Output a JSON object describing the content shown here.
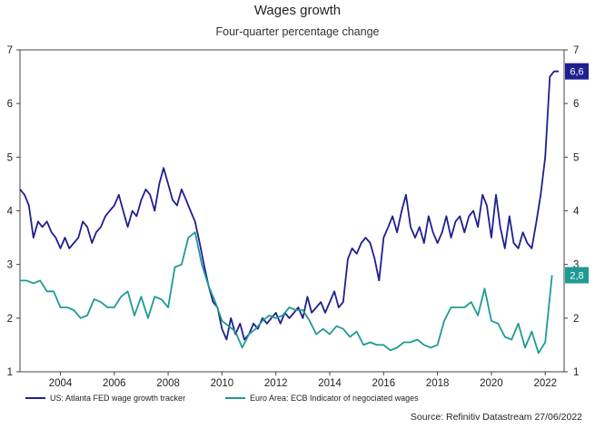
{
  "chart_data": {
    "type": "line",
    "title": "Wages growth",
    "subtitle": "Four-quarter percentage change",
    "source": "Source: Refinitiv Datastream 27/06/2022",
    "xlim": [
      2002.5,
      2022.7
    ],
    "ylim": [
      1,
      7
    ],
    "x_ticks": [
      2004,
      2006,
      2008,
      2010,
      2012,
      2014,
      2016,
      2018,
      2020,
      2022
    ],
    "y_ticks": [
      1,
      2,
      3,
      4,
      5,
      6,
      7
    ],
    "grid": false,
    "legend_position": "bottom",
    "series": [
      {
        "name": "US: Atlanta FED wage growth tracker",
        "color": "#1f1f8f",
        "end_label": "6,6",
        "points": [
          [
            2002.5,
            4.4
          ],
          [
            2002.67,
            4.3
          ],
          [
            2002.83,
            4.1
          ],
          [
            2003.0,
            3.5
          ],
          [
            2003.17,
            3.8
          ],
          [
            2003.33,
            3.7
          ],
          [
            2003.5,
            3.8
          ],
          [
            2003.67,
            3.6
          ],
          [
            2003.83,
            3.5
          ],
          [
            2004.0,
            3.3
          ],
          [
            2004.17,
            3.5
          ],
          [
            2004.33,
            3.3
          ],
          [
            2004.5,
            3.4
          ],
          [
            2004.67,
            3.5
          ],
          [
            2004.83,
            3.8
          ],
          [
            2005.0,
            3.7
          ],
          [
            2005.17,
            3.4
          ],
          [
            2005.33,
            3.6
          ],
          [
            2005.5,
            3.7
          ],
          [
            2005.67,
            3.9
          ],
          [
            2005.83,
            4.0
          ],
          [
            2006.0,
            4.1
          ],
          [
            2006.17,
            4.3
          ],
          [
            2006.33,
            4.0
          ],
          [
            2006.5,
            3.7
          ],
          [
            2006.67,
            4.0
          ],
          [
            2006.83,
            3.9
          ],
          [
            2007.0,
            4.2
          ],
          [
            2007.17,
            4.4
          ],
          [
            2007.33,
            4.3
          ],
          [
            2007.5,
            4.0
          ],
          [
            2007.67,
            4.5
          ],
          [
            2007.83,
            4.8
          ],
          [
            2008.0,
            4.5
          ],
          [
            2008.17,
            4.2
          ],
          [
            2008.33,
            4.1
          ],
          [
            2008.5,
            4.4
          ],
          [
            2008.67,
            4.2
          ],
          [
            2008.83,
            4.0
          ],
          [
            2009.0,
            3.8
          ],
          [
            2009.17,
            3.4
          ],
          [
            2009.33,
            3.0
          ],
          [
            2009.5,
            2.6
          ],
          [
            2009.67,
            2.3
          ],
          [
            2009.83,
            2.2
          ],
          [
            2010.0,
            1.8
          ],
          [
            2010.17,
            1.6
          ],
          [
            2010.33,
            2.0
          ],
          [
            2010.5,
            1.7
          ],
          [
            2010.67,
            1.9
          ],
          [
            2010.83,
            1.6
          ],
          [
            2011.0,
            1.7
          ],
          [
            2011.17,
            1.9
          ],
          [
            2011.33,
            1.8
          ],
          [
            2011.5,
            2.0
          ],
          [
            2011.67,
            1.9
          ],
          [
            2011.83,
            2.0
          ],
          [
            2012.0,
            2.1
          ],
          [
            2012.17,
            1.9
          ],
          [
            2012.33,
            2.1
          ],
          [
            2012.5,
            2.0
          ],
          [
            2012.67,
            2.1
          ],
          [
            2012.83,
            2.2
          ],
          [
            2013.0,
            2.0
          ],
          [
            2013.17,
            2.4
          ],
          [
            2013.33,
            2.1
          ],
          [
            2013.5,
            2.2
          ],
          [
            2013.67,
            2.3
          ],
          [
            2013.83,
            2.1
          ],
          [
            2014.0,
            2.3
          ],
          [
            2014.17,
            2.5
          ],
          [
            2014.33,
            2.2
          ],
          [
            2014.5,
            2.3
          ],
          [
            2014.67,
            3.1
          ],
          [
            2014.83,
            3.3
          ],
          [
            2015.0,
            3.2
          ],
          [
            2015.17,
            3.4
          ],
          [
            2015.33,
            3.5
          ],
          [
            2015.5,
            3.4
          ],
          [
            2015.67,
            3.1
          ],
          [
            2015.83,
            2.7
          ],
          [
            2016.0,
            3.5
          ],
          [
            2016.17,
            3.7
          ],
          [
            2016.33,
            3.9
          ],
          [
            2016.5,
            3.6
          ],
          [
            2016.67,
            4.0
          ],
          [
            2016.83,
            4.3
          ],
          [
            2017.0,
            3.7
          ],
          [
            2017.17,
            3.5
          ],
          [
            2017.33,
            3.7
          ],
          [
            2017.5,
            3.4
          ],
          [
            2017.67,
            3.9
          ],
          [
            2017.83,
            3.6
          ],
          [
            2018.0,
            3.4
          ],
          [
            2018.17,
            3.6
          ],
          [
            2018.33,
            3.9
          ],
          [
            2018.5,
            3.5
          ],
          [
            2018.67,
            3.8
          ],
          [
            2018.83,
            3.9
          ],
          [
            2019.0,
            3.6
          ],
          [
            2019.17,
            3.9
          ],
          [
            2019.33,
            4.0
          ],
          [
            2019.5,
            3.7
          ],
          [
            2019.67,
            4.3
          ],
          [
            2019.83,
            4.1
          ],
          [
            2020.0,
            3.5
          ],
          [
            2020.17,
            4.3
          ],
          [
            2020.33,
            3.7
          ],
          [
            2020.5,
            3.3
          ],
          [
            2020.67,
            3.9
          ],
          [
            2020.83,
            3.4
          ],
          [
            2021.0,
            3.3
          ],
          [
            2021.17,
            3.6
          ],
          [
            2021.33,
            3.4
          ],
          [
            2021.5,
            3.3
          ],
          [
            2021.67,
            3.8
          ],
          [
            2021.83,
            4.3
          ],
          [
            2022.0,
            5.0
          ],
          [
            2022.17,
            6.5
          ],
          [
            2022.33,
            6.6
          ],
          [
            2022.5,
            6.6
          ]
        ]
      },
      {
        "name": "Euro Area: ECB Indicator of negociated wages",
        "color": "#1f9a94",
        "end_label": "2,8",
        "points": [
          [
            2002.5,
            2.7
          ],
          [
            2002.75,
            2.7
          ],
          [
            2003.0,
            2.65
          ],
          [
            2003.25,
            2.7
          ],
          [
            2003.5,
            2.5
          ],
          [
            2003.75,
            2.5
          ],
          [
            2004.0,
            2.2
          ],
          [
            2004.25,
            2.2
          ],
          [
            2004.5,
            2.15
          ],
          [
            2004.75,
            2.0
          ],
          [
            2005.0,
            2.05
          ],
          [
            2005.25,
            2.35
          ],
          [
            2005.5,
            2.3
          ],
          [
            2005.75,
            2.2
          ],
          [
            2006.0,
            2.2
          ],
          [
            2006.25,
            2.4
          ],
          [
            2006.5,
            2.5
          ],
          [
            2006.75,
            2.05
          ],
          [
            2007.0,
            2.4
          ],
          [
            2007.25,
            2.0
          ],
          [
            2007.5,
            2.4
          ],
          [
            2007.75,
            2.35
          ],
          [
            2008.0,
            2.2
          ],
          [
            2008.25,
            2.95
          ],
          [
            2008.5,
            3.0
          ],
          [
            2008.75,
            3.5
          ],
          [
            2009.0,
            3.6
          ],
          [
            2009.25,
            3.0
          ],
          [
            2009.5,
            2.6
          ],
          [
            2009.75,
            2.3
          ],
          [
            2010.0,
            1.95
          ],
          [
            2010.25,
            1.85
          ],
          [
            2010.5,
            1.75
          ],
          [
            2010.75,
            1.45
          ],
          [
            2011.0,
            1.7
          ],
          [
            2011.25,
            1.8
          ],
          [
            2011.5,
            1.95
          ],
          [
            2011.75,
            2.05
          ],
          [
            2012.0,
            2.0
          ],
          [
            2012.25,
            2.05
          ],
          [
            2012.5,
            2.2
          ],
          [
            2012.75,
            2.15
          ],
          [
            2013.0,
            2.15
          ],
          [
            2013.25,
            1.95
          ],
          [
            2013.5,
            1.7
          ],
          [
            2013.75,
            1.8
          ],
          [
            2014.0,
            1.7
          ],
          [
            2014.25,
            1.85
          ],
          [
            2014.5,
            1.8
          ],
          [
            2014.75,
            1.65
          ],
          [
            2015.0,
            1.75
          ],
          [
            2015.25,
            1.5
          ],
          [
            2015.5,
            1.55
          ],
          [
            2015.75,
            1.5
          ],
          [
            2016.0,
            1.5
          ],
          [
            2016.25,
            1.4
          ],
          [
            2016.5,
            1.45
          ],
          [
            2016.75,
            1.55
          ],
          [
            2017.0,
            1.55
          ],
          [
            2017.25,
            1.6
          ],
          [
            2017.5,
            1.5
          ],
          [
            2017.75,
            1.45
          ],
          [
            2018.0,
            1.5
          ],
          [
            2018.25,
            1.95
          ],
          [
            2018.5,
            2.2
          ],
          [
            2018.75,
            2.2
          ],
          [
            2019.0,
            2.2
          ],
          [
            2019.25,
            2.3
          ],
          [
            2019.5,
            2.05
          ],
          [
            2019.75,
            2.55
          ],
          [
            2020.0,
            1.95
          ],
          [
            2020.25,
            1.9
          ],
          [
            2020.5,
            1.65
          ],
          [
            2020.75,
            1.6
          ],
          [
            2021.0,
            1.9
          ],
          [
            2021.25,
            1.45
          ],
          [
            2021.5,
            1.75
          ],
          [
            2021.75,
            1.35
          ],
          [
            2022.0,
            1.55
          ],
          [
            2022.25,
            2.8
          ]
        ]
      }
    ]
  }
}
